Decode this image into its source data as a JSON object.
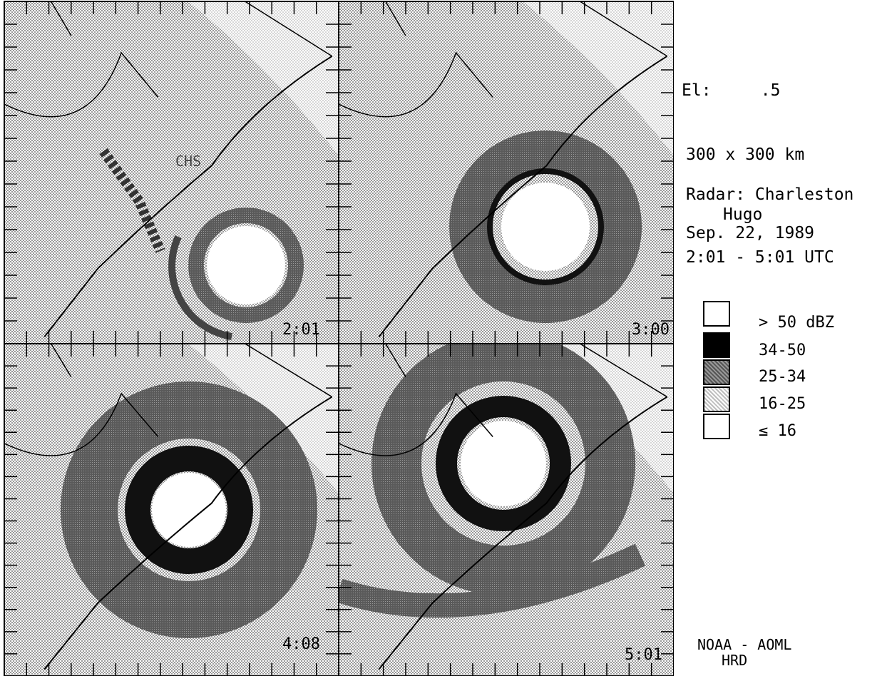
{
  "panels": [
    {
      "time": "2:01"
    },
    {
      "time": "3:00"
    },
    {
      "time": "4:08"
    },
    {
      "time": "5:01"
    }
  ],
  "map_label": "CHS",
  "info": {
    "elevation": "El:     .5",
    "domain": "300 x 300 km",
    "radar": "Radar: Charleston",
    "storm": "Hugo",
    "date": "Sep. 22, 1989",
    "time_range": "2:01 - 5:01 UTC"
  },
  "legend": [
    {
      "label": "> 50 dBZ",
      "color": "#ffffff"
    },
    {
      "label": "34-50",
      "color": "#000000"
    },
    {
      "label": "25-34",
      "color": "#6d6d6d"
    },
    {
      "label": "16-25",
      "color": "#cfcfcf"
    },
    {
      "label": "≤ 16",
      "color": "#ffffff"
    }
  ],
  "credit": {
    "line1": "NOAA - AOML",
    "line2": "HRD"
  }
}
